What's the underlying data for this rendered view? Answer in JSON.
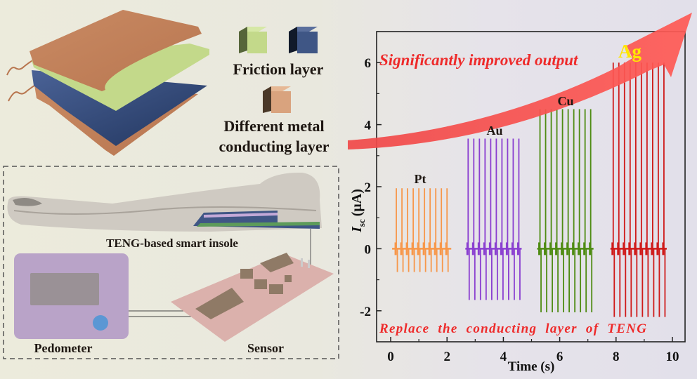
{
  "legend": {
    "friction_layer": "Friction layer",
    "metal_layer_line1": "Different metal",
    "metal_layer_line2": "conducting layer",
    "colors": {
      "friction_green": "#c3d98a",
      "friction_blue": "#3f5685",
      "metal": "#d9a37e"
    }
  },
  "system": {
    "insole_label": "TENG-based smart insole",
    "pedometer_label": "Pedometer",
    "sensor_label": "Sensor"
  },
  "chart_data": {
    "type": "line",
    "xlabel": "Time (s)",
    "ylabel_main": "I",
    "ylabel_sub": "sc",
    "ylabel_unit": "(μA)",
    "xlim": [
      -0.5,
      10.45
    ],
    "ylim": [
      -3,
      7
    ],
    "xticks": [
      0,
      2,
      4,
      6,
      8,
      10
    ],
    "yticks": [
      -2,
      0,
      2,
      4,
      6
    ],
    "grid": false,
    "annotations": {
      "top": "Significantly improved output",
      "bottom": "Replace the conducting layer of TENG",
      "arrow_label": "Ag"
    },
    "series": [
      {
        "name": "Pt",
        "color": "#f7974a",
        "spike_times": [
          0.2,
          0.4,
          0.6,
          0.8,
          1.0,
          1.2,
          1.4,
          1.6,
          1.8,
          2.0
        ],
        "peak": 1.95,
        "trough": -0.75,
        "range": [
          0.05,
          2.15
        ]
      },
      {
        "name": "Au",
        "color": "#8a3fd0",
        "spike_times": [
          2.75,
          2.95,
          3.15,
          3.35,
          3.55,
          3.75,
          3.95,
          4.15,
          4.35,
          4.55
        ],
        "peak": 3.55,
        "trough": -1.65,
        "range": [
          2.65,
          4.65
        ]
      },
      {
        "name": "Cu",
        "color": "#4e8b12",
        "spike_times": [
          5.3,
          5.5,
          5.7,
          5.9,
          6.1,
          6.3,
          6.5,
          6.7,
          6.9,
          7.1
        ],
        "peak": 4.5,
        "trough": -2.05,
        "range": [
          5.2,
          7.2
        ]
      },
      {
        "name": "Ag",
        "color": "#cf1a1a",
        "spike_times": [
          7.9,
          8.1,
          8.3,
          8.5,
          8.7,
          8.9,
          9.1,
          9.3,
          9.5,
          9.7
        ],
        "peak": 6.0,
        "trough": -2.2,
        "range": [
          7.8,
          9.8
        ]
      }
    ]
  }
}
